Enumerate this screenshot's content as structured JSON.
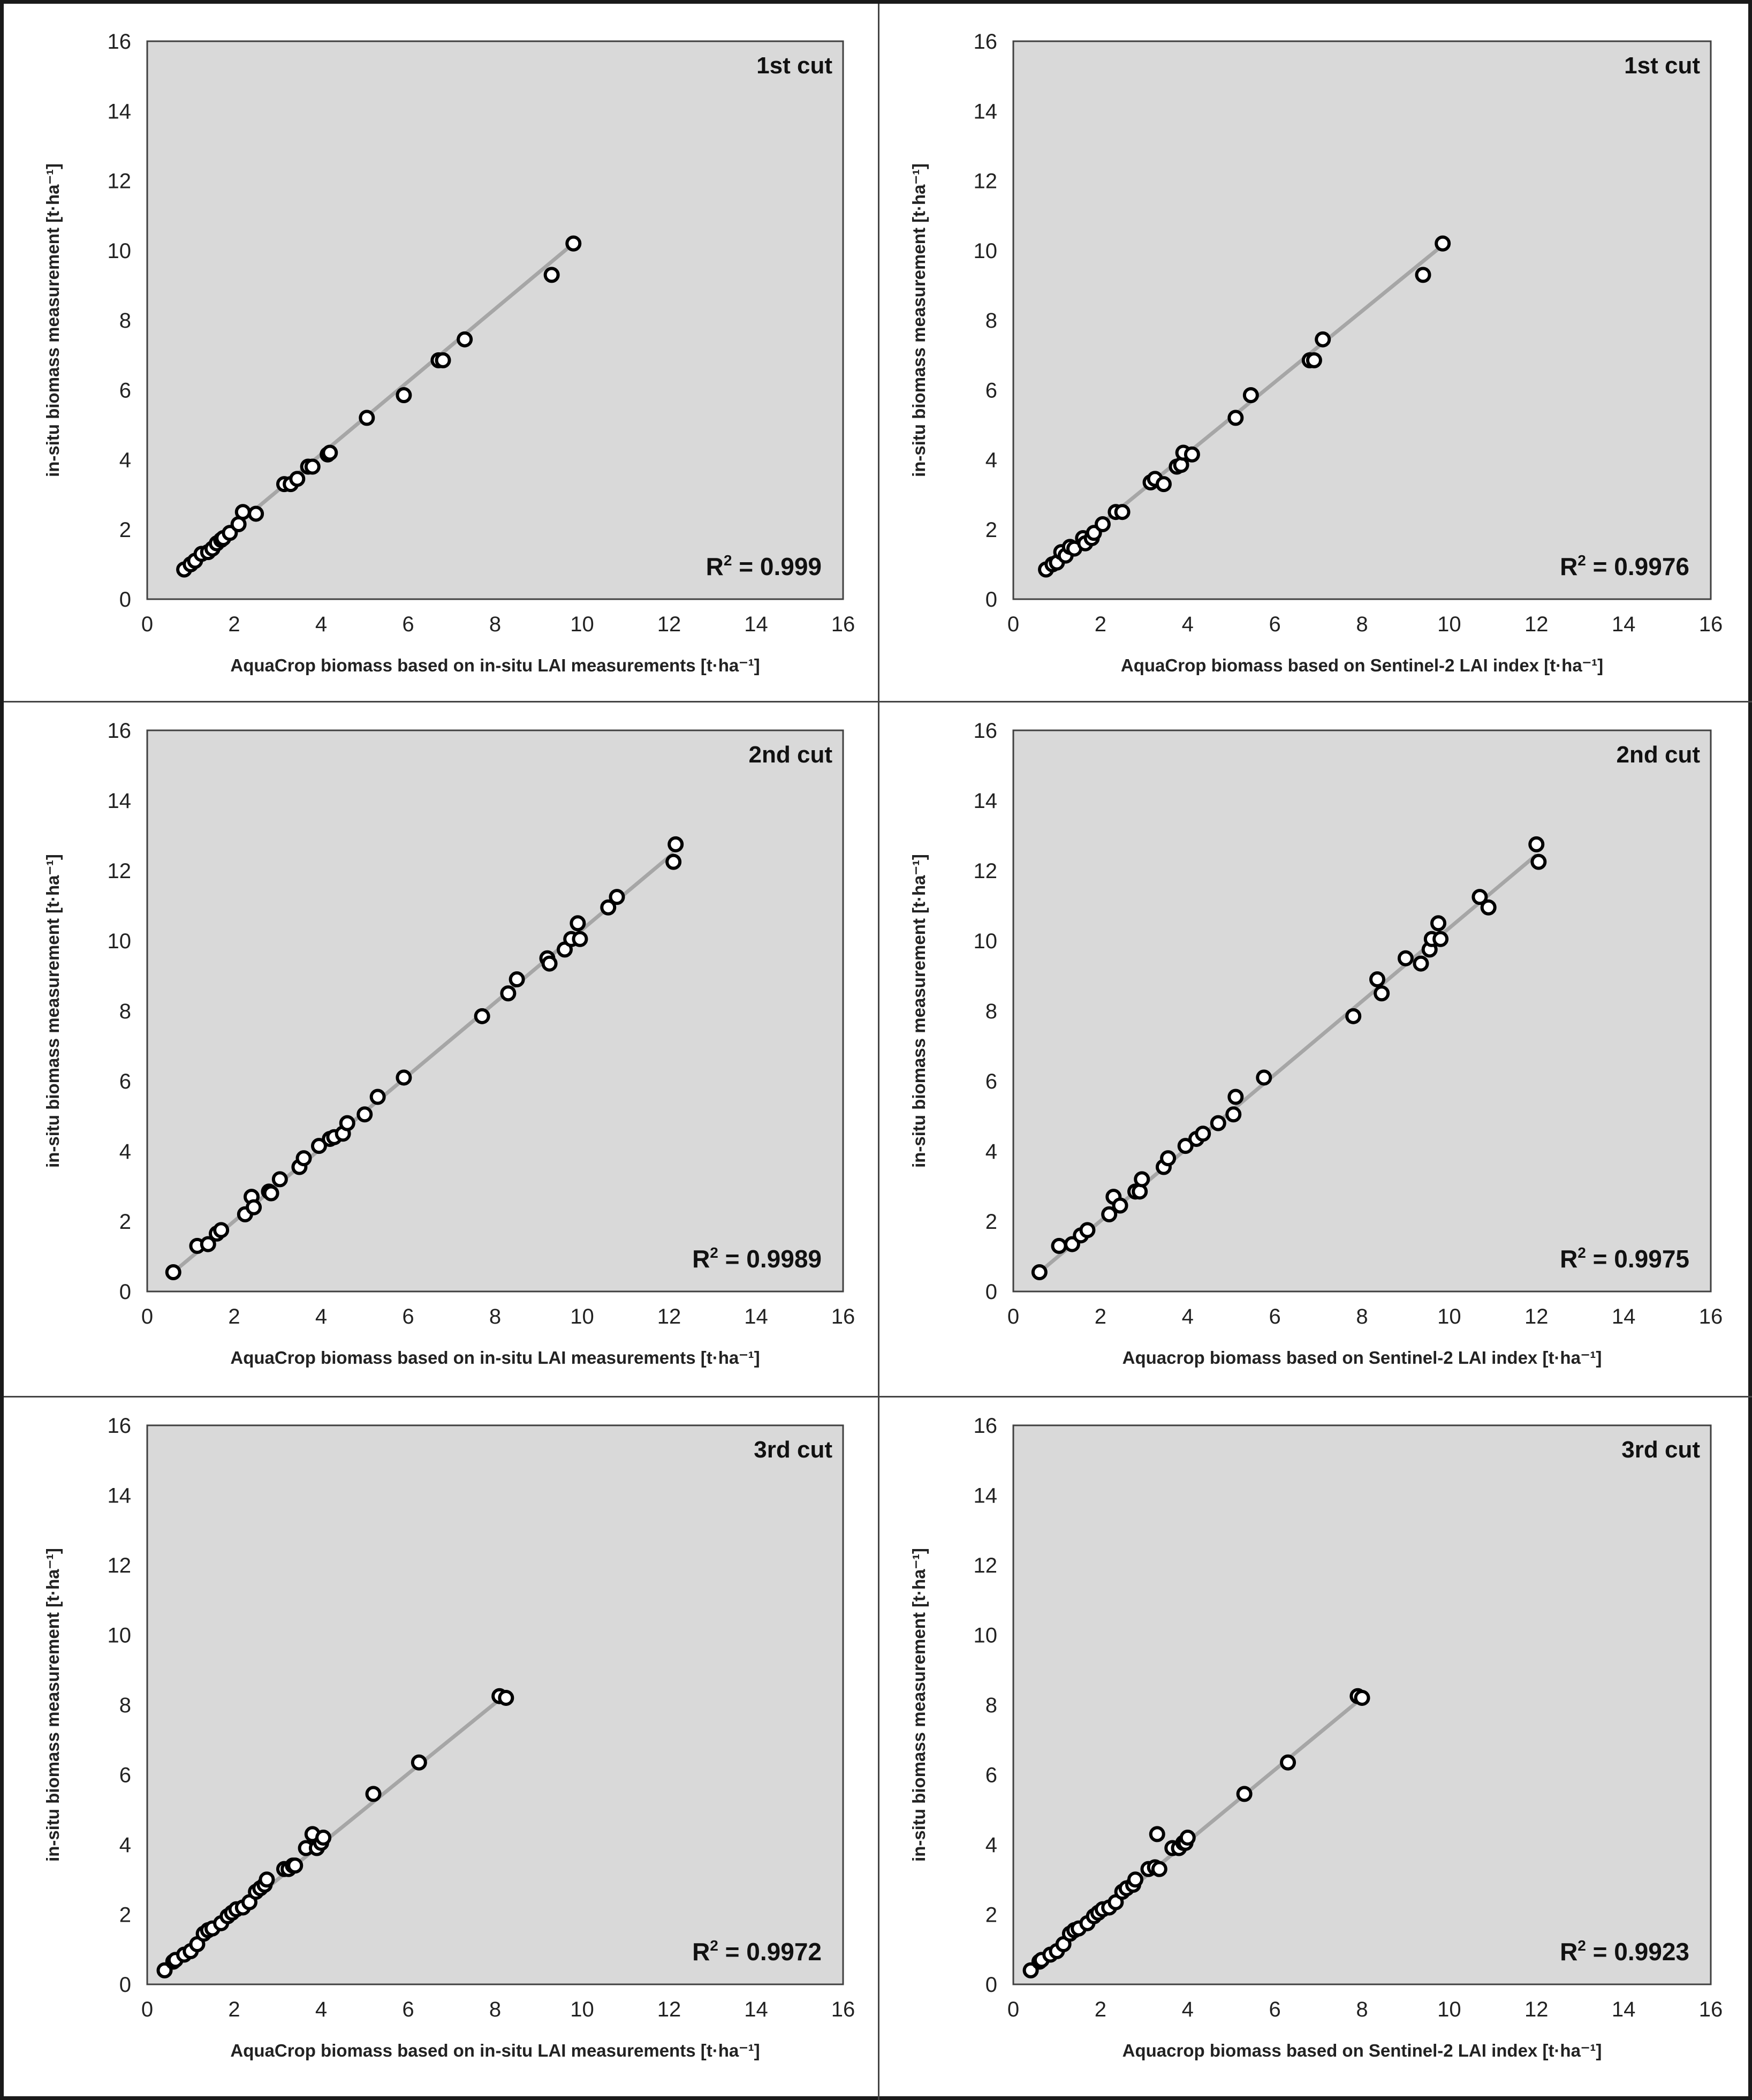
{
  "chart_data": [
    {
      "id": "p1",
      "type": "scatter",
      "annotation": "1st cut",
      "xlabel": "AquaCrop biomass based on in-situ LAI measurements [t·ha⁻¹]",
      "ylabel": "in-situ biomass measurement [t·ha⁻¹]",
      "xlim": [
        0,
        16
      ],
      "ylim": [
        0,
        16
      ],
      "xticks": [
        "0",
        "2",
        "4",
        "6",
        "8",
        "10",
        "12",
        "14",
        "16"
      ],
      "yticks": [
        "0",
        "2",
        "4",
        "6",
        "8",
        "10",
        "12",
        "14",
        "16"
      ],
      "r2_prefix": "R",
      "r2_exp": "2",
      "r2_value": " = 0.999",
      "trend": [
        [
          0.8,
          0.82
        ],
        [
          9.8,
          10.2
        ]
      ],
      "x": [
        0.85,
        1.0,
        1.1,
        1.25,
        1.4,
        1.5,
        1.6,
        1.7,
        1.75,
        1.9,
        2.1,
        2.2,
        2.5,
        3.15,
        3.3,
        3.45,
        3.7,
        3.8,
        4.15,
        4.2,
        5.05,
        5.9,
        6.7,
        6.8,
        7.3,
        9.3,
        9.8
      ],
      "y": [
        0.85,
        1.0,
        1.1,
        1.3,
        1.35,
        1.45,
        1.6,
        1.7,
        1.75,
        1.9,
        2.15,
        2.5,
        2.45,
        3.3,
        3.3,
        3.45,
        3.8,
        3.8,
        4.15,
        4.2,
        5.2,
        5.85,
        6.85,
        6.85,
        7.45,
        9.3,
        10.2
      ]
    },
    {
      "id": "p2",
      "type": "scatter",
      "annotation": "1st cut",
      "xlabel": "AquaCrop biomass based on Sentinel-2 LAI index [t·ha⁻¹]",
      "ylabel": "in-situ biomass measurement [t·ha⁻¹]",
      "xlim": [
        0,
        16
      ],
      "ylim": [
        0,
        16
      ],
      "xticks": [
        "0",
        "2",
        "4",
        "6",
        "8",
        "10",
        "12",
        "14",
        "16"
      ],
      "yticks": [
        "0",
        "2",
        "4",
        "6",
        "8",
        "10",
        "12",
        "14",
        "16"
      ],
      "r2_prefix": "R",
      "r2_exp": "2",
      "r2_value": " = 0.9976",
      "trend": [
        [
          0.7,
          0.82
        ],
        [
          9.9,
          10.2
        ]
      ],
      "x": [
        0.75,
        0.9,
        1.0,
        1.1,
        1.2,
        1.3,
        1.4,
        1.6,
        1.65,
        1.8,
        1.85,
        2.05,
        2.35,
        2.5,
        3.15,
        3.25,
        3.45,
        3.75,
        3.85,
        3.9,
        4.1,
        5.1,
        5.45,
        6.8,
        6.9,
        7.1,
        9.4,
        9.85
      ],
      "y": [
        0.85,
        1.0,
        1.05,
        1.35,
        1.25,
        1.5,
        1.45,
        1.75,
        1.6,
        1.75,
        1.9,
        2.15,
        2.5,
        2.5,
        3.35,
        3.45,
        3.3,
        3.8,
        3.85,
        4.2,
        4.15,
        5.2,
        5.85,
        6.85,
        6.85,
        7.45,
        9.3,
        10.2
      ]
    },
    {
      "id": "p3",
      "type": "scatter",
      "annotation": "2nd cut",
      "xlabel": "AquaCrop biomass based on in-situ LAI measurements [t·ha⁻¹]",
      "ylabel": "in-situ biomass measurement [t·ha⁻¹]",
      "xlim": [
        0,
        16
      ],
      "ylim": [
        0,
        16
      ],
      "xticks": [
        "0",
        "2",
        "4",
        "6",
        "8",
        "10",
        "12",
        "14",
        "16"
      ],
      "yticks": [
        "0",
        "2",
        "4",
        "6",
        "8",
        "10",
        "12",
        "14",
        "16"
      ],
      "r2_prefix": "R",
      "r2_exp": "2",
      "r2_value": " = 0.9989",
      "trend": [
        [
          0.6,
          0.55
        ],
        [
          12.1,
          12.5
        ]
      ],
      "x": [
        0.6,
        1.15,
        1.4,
        1.6,
        1.7,
        2.25,
        2.4,
        2.45,
        2.8,
        2.85,
        3.05,
        3.5,
        3.6,
        3.95,
        4.2,
        4.3,
        4.5,
        4.6,
        5.0,
        5.3,
        5.9,
        7.7,
        8.3,
        8.5,
        9.2,
        9.25,
        9.6,
        9.75,
        9.9,
        9.95,
        10.6,
        10.8,
        12.1,
        12.15
      ],
      "y": [
        0.55,
        1.3,
        1.35,
        1.65,
        1.75,
        2.2,
        2.7,
        2.4,
        2.85,
        2.8,
        3.2,
        3.55,
        3.8,
        4.15,
        4.35,
        4.4,
        4.5,
        4.8,
        5.05,
        5.55,
        6.1,
        7.85,
        8.5,
        8.9,
        9.5,
        9.35,
        9.75,
        10.05,
        10.5,
        10.05,
        10.95,
        11.25,
        12.25,
        12.75
      ]
    },
    {
      "id": "p4",
      "type": "scatter",
      "annotation": "2nd cut",
      "xlabel": "Aquacrop biomass based on Sentinel-2 LAI index [t·ha⁻¹]",
      "ylabel": "in-situ biomass measurement [t·ha⁻¹]",
      "xlim": [
        0,
        16
      ],
      "ylim": [
        0,
        16
      ],
      "xticks": [
        "0",
        "2",
        "4",
        "6",
        "8",
        "10",
        "12",
        "14",
        "16"
      ],
      "yticks": [
        "0",
        "2",
        "4",
        "6",
        "8",
        "10",
        "12",
        "14",
        "16"
      ],
      "r2_prefix": "R",
      "r2_exp": "2",
      "r2_value": " = 0.9975",
      "trend": [
        [
          0.6,
          0.55
        ],
        [
          12.0,
          12.45
        ]
      ],
      "x": [
        0.6,
        1.05,
        1.35,
        1.55,
        1.7,
        2.2,
        2.3,
        2.45,
        2.8,
        2.9,
        2.95,
        3.45,
        3.55,
        3.95,
        4.2,
        4.35,
        4.7,
        5.05,
        5.1,
        5.75,
        7.8,
        8.35,
        8.45,
        9.0,
        9.35,
        9.55,
        9.6,
        9.75,
        9.8,
        10.7,
        10.9,
        12.0,
        12.05
      ],
      "y": [
        0.55,
        1.3,
        1.35,
        1.6,
        1.75,
        2.2,
        2.7,
        2.45,
        2.85,
        2.85,
        3.2,
        3.55,
        3.8,
        4.15,
        4.35,
        4.5,
        4.8,
        5.05,
        5.55,
        6.1,
        7.85,
        8.9,
        8.5,
        9.5,
        9.35,
        9.75,
        10.05,
        10.5,
        10.05,
        11.25,
        10.95,
        12.75,
        12.25
      ]
    },
    {
      "id": "p5",
      "type": "scatter",
      "annotation": "3rd cut",
      "xlabel": "AquaCrop biomass based on in-situ LAI measurements [t·ha⁻¹]",
      "ylabel": "in-situ biomass measurement [t·ha⁻¹]",
      "xlim": [
        0,
        16
      ],
      "ylim": [
        0,
        16
      ],
      "xticks": [
        "0",
        "2",
        "4",
        "6",
        "8",
        "10",
        "12",
        "14",
        "16"
      ],
      "yticks": [
        "0",
        "2",
        "4",
        "6",
        "8",
        "10",
        "12",
        "14",
        "16"
      ],
      "r2_prefix": "R",
      "r2_exp": "2",
      "r2_value": " = 0.9972",
      "trend": [
        [
          0.4,
          0.38
        ],
        [
          8.2,
          8.25
        ]
      ],
      "x": [
        0.4,
        0.6,
        0.65,
        0.85,
        1.0,
        1.15,
        1.3,
        1.4,
        1.5,
        1.7,
        1.85,
        1.95,
        2.05,
        2.2,
        2.35,
        2.5,
        2.6,
        2.7,
        2.75,
        3.15,
        3.25,
        3.35,
        3.4,
        3.65,
        3.8,
        3.9,
        4.0,
        4.05,
        5.2,
        6.25,
        8.1,
        8.25
      ],
      "y": [
        0.4,
        0.65,
        0.7,
        0.85,
        0.95,
        1.15,
        1.45,
        1.55,
        1.6,
        1.75,
        1.95,
        2.05,
        2.15,
        2.2,
        2.35,
        2.65,
        2.75,
        2.85,
        3.0,
        3.3,
        3.3,
        3.4,
        3.4,
        3.9,
        4.3,
        3.9,
        4.05,
        4.2,
        5.45,
        6.35,
        8.25,
        8.2
      ]
    },
    {
      "id": "p6",
      "type": "scatter",
      "annotation": "3rd cut",
      "xlabel": "Aquacrop biomass based on Sentinel-2 LAI index [t·ha⁻¹]",
      "ylabel": "in-situ biomass measurement [t·ha⁻¹]",
      "xlim": [
        0,
        16
      ],
      "ylim": [
        0,
        16
      ],
      "xticks": [
        "0",
        "2",
        "4",
        "6",
        "8",
        "10",
        "12",
        "14",
        "16"
      ],
      "yticks": [
        "0",
        "2",
        "4",
        "6",
        "8",
        "10",
        "12",
        "14",
        "16"
      ],
      "r2_prefix": "R",
      "r2_exp": "2",
      "r2_value": " = 0.9923",
      "trend": [
        [
          0.4,
          0.38
        ],
        [
          8.05,
          8.25
        ]
      ],
      "x": [
        0.4,
        0.6,
        0.65,
        0.85,
        1.0,
        1.15,
        1.3,
        1.4,
        1.5,
        1.7,
        1.85,
        1.95,
        2.05,
        2.2,
        2.35,
        2.5,
        2.6,
        2.75,
        2.8,
        3.1,
        3.25,
        3.3,
        3.35,
        3.65,
        3.8,
        3.9,
        3.95,
        4.0,
        5.3,
        6.3,
        7.9,
        8.0
      ],
      "y": [
        0.4,
        0.65,
        0.7,
        0.85,
        0.95,
        1.15,
        1.45,
        1.55,
        1.6,
        1.75,
        1.95,
        2.05,
        2.15,
        2.2,
        2.35,
        2.65,
        2.75,
        2.85,
        3.0,
        3.3,
        3.35,
        4.3,
        3.3,
        3.9,
        3.9,
        4.05,
        4.05,
        4.2,
        5.45,
        6.35,
        8.25,
        8.2
      ]
    }
  ]
}
